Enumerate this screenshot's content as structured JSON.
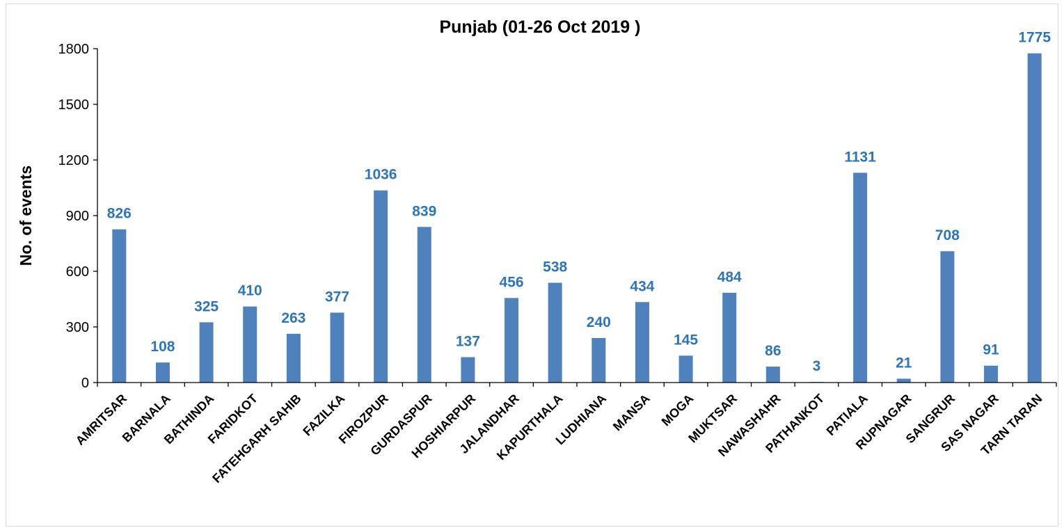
{
  "chart_data": {
    "type": "bar",
    "title": "Punjab (01-26 Oct 2019 )",
    "xlabel": "",
    "ylabel": "No. of events",
    "ylim": [
      0,
      1800
    ],
    "yticks": [
      0,
      300,
      600,
      900,
      1200,
      1500,
      1800
    ],
    "grid": false,
    "legend": "none",
    "bar_color": "#4f81bd",
    "label_color": "#2e75b6",
    "categories": [
      "AMRITSAR",
      "BARNALA",
      "BATHINDA",
      "FARIDKOT",
      "FATEHGARH SAHIB",
      "FAZILKA",
      "FIROZPUR",
      "GURDASPUR",
      "HOSHIARPUR",
      "JALANDHAR",
      "KAPURTHALA",
      "LUDHIANA",
      "MANSA",
      "MOGA",
      "MUKTSAR",
      "NAWASHAHR",
      "PATHANKOT",
      "PATIALA",
      "RUPNAGAR",
      "SANGRUR",
      "SAS NAGAR",
      "TARN TARAN"
    ],
    "values": [
      826,
      108,
      325,
      410,
      263,
      377,
      1036,
      839,
      137,
      456,
      538,
      240,
      434,
      145,
      484,
      86,
      3,
      1131,
      21,
      708,
      91,
      1775
    ]
  }
}
